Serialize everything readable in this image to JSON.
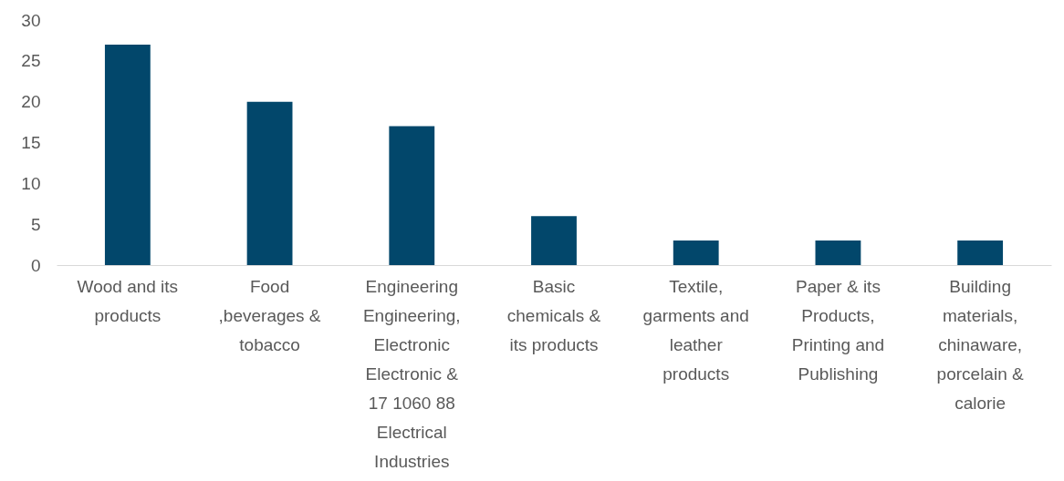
{
  "chart_data": {
    "type": "bar",
    "categories": [
      "Wood and its products",
      "Food ,beverages & tobacco",
      "Engineering Engineering, Electronic Electronic & 17 1060 88 Electrical Industries",
      "Basic chemicals & its products",
      "Textile, garments and leather products",
      "Paper & its Products, Printing and Publishing",
      "Building materials, chinaware, porcelain & calorie"
    ],
    "values": [
      27,
      20,
      17,
      6,
      3,
      3,
      3
    ],
    "color": "#02476b",
    "ylim": [
      0,
      30
    ],
    "yticks": [
      0,
      5,
      10,
      15,
      20,
      25,
      30
    ],
    "grid": false,
    "legend": false
  }
}
